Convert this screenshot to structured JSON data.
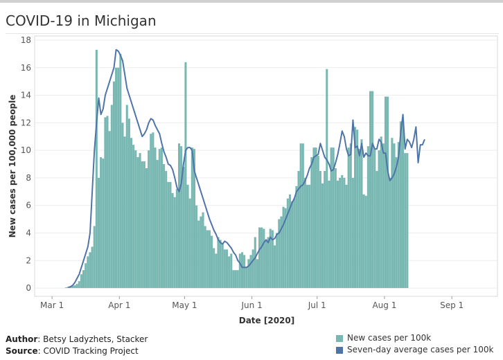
{
  "title": "COVID-19 in Michigan",
  "credits": {
    "author_label": "Author",
    "author_value": ": Betsy Ladyzhets, Stacker",
    "source_label": "Source",
    "source_value": ": COVID Tracking Project"
  },
  "legend": {
    "bar_label": "New cases per 100k",
    "line_label": "Seven-day average cases per 100k"
  },
  "colors": {
    "bar": "#79b8b2",
    "line": "#4e74a8"
  },
  "chart_data": {
    "type": "bar",
    "xlabel": "Date [2020]",
    "ylabel": "New cases per 100,000 people",
    "ylim": [
      -0.6,
      18.3
    ],
    "yticks": [
      0,
      2,
      4,
      6,
      8,
      10,
      12,
      14,
      16,
      18
    ],
    "x_start": "2020-02-22",
    "x_end": "2020-09-22",
    "xticks": [
      {
        "label": "Mar 1",
        "date": "2020-03-01"
      },
      {
        "label": "Apr 1",
        "date": "2020-04-01"
      },
      {
        "label": "May 1",
        "date": "2020-05-01"
      },
      {
        "label": "Jun 1",
        "date": "2020-06-01"
      },
      {
        "label": "Jul 1",
        "date": "2020-07-01"
      },
      {
        "label": "Aug 1",
        "date": "2020-08-01"
      },
      {
        "label": "Sep 1",
        "date": "2020-09-01"
      }
    ],
    "bar_start_date": "2020-03-01",
    "series": [
      {
        "name": "New cases per 100k",
        "type": "bar",
        "values": [
          0,
          0,
          0,
          0,
          0,
          0,
          0.05,
          0.1,
          0.1,
          0.15,
          0.2,
          0.3,
          0.5,
          1,
          1.3,
          1.8,
          2.3,
          2.6,
          3,
          4.5,
          17.3,
          8,
          9.5,
          9.4,
          12.4,
          12.5,
          11.4,
          13.3,
          15,
          16,
          16,
          17,
          12,
          11,
          13.3,
          12.3,
          10.9,
          10.4,
          10,
          9.5,
          9.8,
          9.2,
          9.2,
          8.7,
          10,
          11.2,
          11.3,
          10.2,
          9.3,
          10.1,
          10.2,
          9,
          8.5,
          7.7,
          7.7,
          6.9,
          6.6,
          7.2,
          10.5,
          10.3,
          8.8,
          16.4,
          7.5,
          6.5,
          10.2,
          10.1,
          6,
          4.9,
          5.2,
          5.5,
          4.5,
          4.2,
          4.2,
          3.8,
          2.9,
          2.5,
          3.7,
          3.5,
          3.2,
          2.8,
          2.8,
          2.3,
          2.5,
          1.3,
          1.3,
          1.3,
          2.5,
          2.6,
          2.4,
          1.5,
          2.1,
          2.4,
          2.8,
          3.7,
          2.1,
          4.4,
          4.4,
          4.3,
          3.5,
          3.7,
          4.3,
          4.2,
          3.1,
          4,
          5,
          5.2,
          5.9,
          5.8,
          6.5,
          6.8,
          6.3,
          6.5,
          7.4,
          8.5,
          10.5,
          10.5,
          8,
          7.5,
          7.5,
          9.5,
          10.2,
          10.2,
          9.6,
          8.5,
          7.6,
          8.5,
          15.9,
          7.8,
          10.2,
          10.2,
          8.7,
          7.8,
          8,
          8.2,
          8,
          7.5,
          10.2,
          10.5,
          8,
          11.7,
          11.5,
          10.1,
          10.8,
          6.8,
          6.7,
          10.3,
          14.3,
          14.3,
          10.1,
          8.5,
          10,
          11,
          10.5,
          13.9,
          13.9,
          8,
          10.9,
          10.5,
          9.5,
          10.6,
          12.1,
          12.1,
          9.8,
          9.8
        ],
        "color": "#79b8b2"
      },
      {
        "name": "Seven-day average cases per 100k",
        "type": "line",
        "start_date": "2020-03-08",
        "values": [
          0.05,
          0.1,
          0.2,
          0.4,
          0.7,
          1,
          1.5,
          2,
          2.5,
          3,
          4,
          7,
          10,
          12,
          13.8,
          12.6,
          13,
          14,
          14.5,
          15,
          15.5,
          16,
          17.3,
          17.2,
          16.9,
          16.5,
          15.5,
          14.5,
          14,
          13.5,
          13,
          12.5,
          12,
          11.5,
          11,
          11.2,
          11.5,
          12,
          12.3,
          12.2,
          11.8,
          11.5,
          11.2,
          10.5,
          9.9,
          9.5,
          9,
          8.9,
          8.6,
          8,
          7.3,
          7,
          7.6,
          9,
          10,
          10.2,
          10.2,
          10,
          8.5,
          8,
          7.5,
          7,
          6.5,
          6,
          5.5,
          5,
          4.6,
          4.2,
          3.9,
          3.5,
          3.3,
          3.2,
          3.4,
          3.3,
          3.1,
          2.9,
          2.6,
          2.4,
          2,
          1.8,
          1.5,
          1.5,
          1.5,
          1.6,
          1.8,
          2,
          2.2,
          2.5,
          2.8,
          3,
          3.3,
          3.5,
          3.3,
          3.7,
          3.5,
          3.6,
          3.9,
          4,
          4.3,
          4.6,
          5,
          5.4,
          5.8,
          6.2,
          6.5,
          7,
          7.2,
          7.4,
          7.5,
          7.8,
          8.2,
          8.7,
          9,
          9.5,
          9.6,
          9.7,
          10.5,
          10,
          9.5,
          9.3,
          9,
          8.5,
          8.6,
          9.1,
          9.7,
          10.5,
          11.4,
          11,
          10.1,
          9.6,
          9.7,
          12.2,
          10.2,
          10.3,
          9.6,
          10.5,
          9.5,
          9.8,
          9.6,
          9.6,
          10.5,
          10.1,
          10.1,
          10.8,
          10.6,
          9.8,
          9.8,
          8.5,
          7.8,
          8,
          8.3,
          8.8,
          9.5,
          11.3,
          12.6,
          10.1,
          10.8,
          10.6,
          10.2,
          10.8,
          11.7,
          9.1,
          10.4,
          10.4,
          10.8
        ]
      }
    ]
  }
}
